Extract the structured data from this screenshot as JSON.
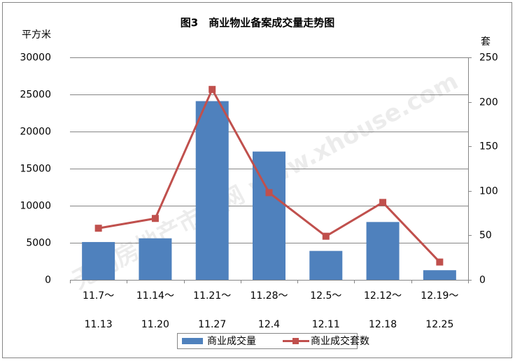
{
  "chart_data": {
    "type": "bar-line",
    "title": "图3　商业物业备案成交量走势图",
    "y_label": "平方米",
    "y2_label": "套",
    "watermark": "无锡房地产市场网 www.xhouse.com",
    "categories": [
      [
        "11.7～",
        "11.13"
      ],
      [
        "11.14～",
        "11.20"
      ],
      [
        "11.21～",
        "11.27"
      ],
      [
        "11.28～",
        "12.4"
      ],
      [
        "12.5～",
        "12.11"
      ],
      [
        "12.12～",
        "12.18"
      ],
      [
        "12.19～",
        "12.25"
      ]
    ],
    "series": [
      {
        "name": "商业成交量",
        "type": "bar",
        "color": "#4f81bd",
        "values": [
          5100,
          5600,
          24100,
          17300,
          3900,
          7800,
          1300
        ]
      },
      {
        "name": "商业成交套数",
        "type": "line",
        "axis": "y2",
        "color": "#c0504d",
        "values": [
          58,
          69,
          214,
          98,
          49,
          87,
          20
        ]
      }
    ],
    "ylim": [
      0,
      30000
    ],
    "yticks": [
      0,
      5000,
      10000,
      15000,
      20000,
      25000,
      30000
    ],
    "y2lim": [
      0,
      250
    ],
    "y2ticks": [
      0,
      50,
      100,
      150,
      200,
      250
    ],
    "grid": true,
    "legend": "bottom"
  }
}
